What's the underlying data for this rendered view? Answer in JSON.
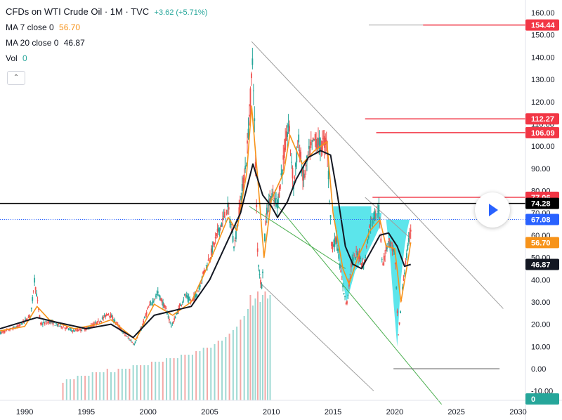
{
  "header": {
    "title": "CFDs on WTI Crude Oil · 1M · TVC",
    "change": "+3.62 (+5.71%)",
    "ma7_label": "MA 7 close 0",
    "ma7_value": "56.70",
    "ma20_label": "MA 20 close 0",
    "ma20_value": "46.87",
    "vol_label": "Vol",
    "vol_value": "0",
    "collapse_icon": "chevron-up-icon"
  },
  "colors": {
    "up": "#26a69a",
    "down": "#ef5350",
    "ma7": "#f7931a",
    "ma20": "#131722",
    "cup_fill": "#40e0e8",
    "hline_red": "#f23645",
    "hline_black": "#000000",
    "current_price": "#2962ff",
    "trend_gray": "#9e9e9e",
    "trend_green": "#4caf50"
  },
  "chart_data": {
    "type": "candlestick",
    "instrument": "CFDs on WTI Crude Oil",
    "interval": "1M",
    "source": "TVC",
    "x_ticks": [
      "1990",
      "1995",
      "2000",
      "2005",
      "2010",
      "2015",
      "2020",
      "2025",
      "2030"
    ],
    "y_ticks": [
      "160.00",
      "150.00",
      "140.00",
      "130.00",
      "120.00",
      "110.00",
      "100.00",
      "90.00",
      "80.00",
      "70.00",
      "60.00",
      "50.00",
      "40.00",
      "30.00",
      "20.00",
      "10.00",
      "0.00",
      "-10.00"
    ],
    "ylim": [
      -13,
      164
    ],
    "xlim": [
      1988.0,
      2030.6
    ],
    "grid": false,
    "price_path": [
      [
        1988.0,
        16
      ],
      [
        1989.5,
        19
      ],
      [
        1990.5,
        24
      ],
      [
        1990.8,
        40
      ],
      [
        1991.3,
        20
      ],
      [
        1992.0,
        21
      ],
      [
        1993.0,
        19
      ],
      [
        1994.0,
        17
      ],
      [
        1995.0,
        18
      ],
      [
        1996.0,
        21
      ],
      [
        1996.8,
        25
      ],
      [
        1997.5,
        20
      ],
      [
        1998.0,
        16
      ],
      [
        1998.9,
        11
      ],
      [
        1999.5,
        19
      ],
      [
        2000.0,
        27
      ],
      [
        2000.8,
        34
      ],
      [
        2001.5,
        26
      ],
      [
        2001.9,
        19
      ],
      [
        2002.5,
        27
      ],
      [
        2003.0,
        33
      ],
      [
        2003.5,
        30
      ],
      [
        2004.0,
        34
      ],
      [
        2004.5,
        43
      ],
      [
        2005.0,
        50
      ],
      [
        2005.7,
        62
      ],
      [
        2006.5,
        72
      ],
      [
        2007.0,
        55
      ],
      [
        2007.5,
        75
      ],
      [
        2008.0,
        95
      ],
      [
        2008.5,
        140
      ],
      [
        2008.9,
        50
      ],
      [
        2009.2,
        36
      ],
      [
        2009.6,
        70
      ],
      [
        2010.0,
        78
      ],
      [
        2010.5,
        74
      ],
      [
        2011.0,
        95
      ],
      [
        2011.4,
        110
      ],
      [
        2011.8,
        82
      ],
      [
        2012.2,
        103
      ],
      [
        2012.6,
        84
      ],
      [
        2013.0,
        96
      ],
      [
        2013.5,
        103
      ],
      [
        2014.0,
        100
      ],
      [
        2014.5,
        103
      ],
      [
        2014.9,
        55
      ],
      [
        2015.3,
        58
      ],
      [
        2015.7,
        40
      ],
      [
        2016.1,
        28
      ],
      [
        2016.5,
        48
      ],
      [
        2017.0,
        52
      ],
      [
        2017.5,
        46
      ],
      [
        2018.0,
        65
      ],
      [
        2018.7,
        73
      ],
      [
        2019.0,
        47
      ],
      [
        2019.5,
        58
      ],
      [
        2020.0,
        52
      ],
      [
        2020.3,
        15
      ],
      [
        2020.7,
        40
      ],
      [
        2021.0,
        52
      ],
      [
        2021.3,
        63
      ]
    ],
    "series": [
      {
        "name": "MA 7 close 0",
        "last": 56.7,
        "values": [
          [
            1988.0,
            17
          ],
          [
            1990.0,
            19
          ],
          [
            1991.0,
            28
          ],
          [
            1992.0,
            22
          ],
          [
            1994.0,
            18
          ],
          [
            1996.0,
            20
          ],
          [
            1997.0,
            22
          ],
          [
            1999.0,
            13
          ],
          [
            2000.5,
            29
          ],
          [
            2002.0,
            24
          ],
          [
            2003.5,
            30
          ],
          [
            2005.0,
            48
          ],
          [
            2006.5,
            68
          ],
          [
            2007.2,
            62
          ],
          [
            2008.0,
            88
          ],
          [
            2008.4,
            118
          ],
          [
            2008.9,
            85
          ],
          [
            2009.4,
            50
          ],
          [
            2010.0,
            76
          ],
          [
            2011.0,
            88
          ],
          [
            2011.5,
            105
          ],
          [
            2012.5,
            92
          ],
          [
            2013.5,
            98
          ],
          [
            2014.5,
            102
          ],
          [
            2015.0,
            70
          ],
          [
            2015.8,
            45
          ],
          [
            2016.3,
            38
          ],
          [
            2017.0,
            50
          ],
          [
            2018.0,
            62
          ],
          [
            2018.8,
            67
          ],
          [
            2019.3,
            55
          ],
          [
            2020.0,
            54
          ],
          [
            2020.5,
            30
          ],
          [
            2021.0,
            46
          ],
          [
            2021.3,
            56.7
          ]
        ]
      },
      {
        "name": "MA 20 close 0",
        "last": 46.87,
        "values": [
          [
            1988.0,
            18
          ],
          [
            1991.0,
            23
          ],
          [
            1992.5,
            21
          ],
          [
            1995.0,
            18
          ],
          [
            1997.0,
            20
          ],
          [
            1998.8,
            14
          ],
          [
            2000.5,
            24
          ],
          [
            2002.0,
            26
          ],
          [
            2003.5,
            28
          ],
          [
            2005.0,
            40
          ],
          [
            2006.5,
            58
          ],
          [
            2007.5,
            70
          ],
          [
            2008.5,
            92
          ],
          [
            2009.3,
            78
          ],
          [
            2010.0,
            73
          ],
          [
            2010.5,
            68
          ],
          [
            2011.3,
            75
          ],
          [
            2012.0,
            85
          ],
          [
            2013.0,
            95
          ],
          [
            2014.0,
            98
          ],
          [
            2014.8,
            96
          ],
          [
            2015.3,
            80
          ],
          [
            2016.0,
            55
          ],
          [
            2016.6,
            47
          ],
          [
            2017.3,
            45
          ],
          [
            2018.0,
            52
          ],
          [
            2018.8,
            60
          ],
          [
            2019.5,
            61
          ],
          [
            2020.2,
            55
          ],
          [
            2020.8,
            46
          ],
          [
            2021.3,
            46.87
          ]
        ]
      }
    ],
    "volume_bars": [
      [
        1993.1,
        5
      ],
      [
        1993.4,
        6
      ],
      [
        1993.7,
        6
      ],
      [
        1994.0,
        6
      ],
      [
        1994.3,
        7
      ],
      [
        1994.6,
        7
      ],
      [
        1994.9,
        7
      ],
      [
        1995.2,
        7
      ],
      [
        1995.5,
        8
      ],
      [
        1995.8,
        8
      ],
      [
        1996.1,
        8
      ],
      [
        1996.4,
        8
      ],
      [
        1996.7,
        9
      ],
      [
        1997.0,
        8
      ],
      [
        1997.3,
        8
      ],
      [
        1997.6,
        9
      ],
      [
        1997.9,
        9
      ],
      [
        1998.2,
        9
      ],
      [
        1998.5,
        9
      ],
      [
        1998.8,
        10
      ],
      [
        1999.1,
        10
      ],
      [
        1999.4,
        10
      ],
      [
        1999.7,
        10
      ],
      [
        2000.0,
        10
      ],
      [
        2000.3,
        11
      ],
      [
        2000.6,
        11
      ],
      [
        2000.9,
        11
      ],
      [
        2001.2,
        11
      ],
      [
        2001.5,
        12
      ],
      [
        2001.8,
        12
      ],
      [
        2002.1,
        12
      ],
      [
        2002.4,
        12
      ],
      [
        2002.7,
        13
      ],
      [
        2003.0,
        13
      ],
      [
        2003.3,
        13
      ],
      [
        2003.6,
        13
      ],
      [
        2003.9,
        14
      ],
      [
        2004.2,
        14
      ],
      [
        2004.5,
        15
      ],
      [
        2004.8,
        15
      ],
      [
        2005.1,
        15
      ],
      [
        2005.4,
        16
      ],
      [
        2005.7,
        17
      ],
      [
        2006.0,
        17
      ],
      [
        2006.3,
        18
      ],
      [
        2006.6,
        19
      ],
      [
        2006.9,
        20
      ],
      [
        2007.2,
        21
      ],
      [
        2007.5,
        23
      ],
      [
        2007.8,
        24
      ],
      [
        2008.1,
        26
      ],
      [
        2008.3,
        30
      ],
      [
        2008.5,
        27
      ],
      [
        2008.7,
        29
      ],
      [
        2008.9,
        31
      ],
      [
        2009.1,
        28
      ],
      [
        2009.3,
        30
      ],
      [
        2009.5,
        31
      ],
      [
        2009.7,
        29
      ],
      [
        2009.9,
        30
      ]
    ],
    "drawings": {
      "horizontal_lines": [
        154.44,
        112.27,
        106.09,
        77.06,
        74.28
      ],
      "current_price": 67.08,
      "low_marker": 0.0,
      "cup_patterns": [
        "2015-2019 cup",
        "2020 cup"
      ],
      "trend_channel": "descending from 2008 high"
    },
    "price_labels": [
      {
        "value": "154.44",
        "style": "red"
      },
      {
        "value": "112.27",
        "style": "red"
      },
      {
        "value": "106.09",
        "style": "red"
      },
      {
        "value": "77.06",
        "style": "red"
      },
      {
        "value": "74.28",
        "style": "black"
      },
      {
        "value": "67.08",
        "style": "blue"
      },
      {
        "value": "56.70",
        "style": "orange"
      },
      {
        "value": "46.87",
        "style": "dark"
      },
      {
        "value": "0",
        "style": "teal"
      }
    ]
  },
  "controls": {
    "play_icon": "play-icon"
  }
}
